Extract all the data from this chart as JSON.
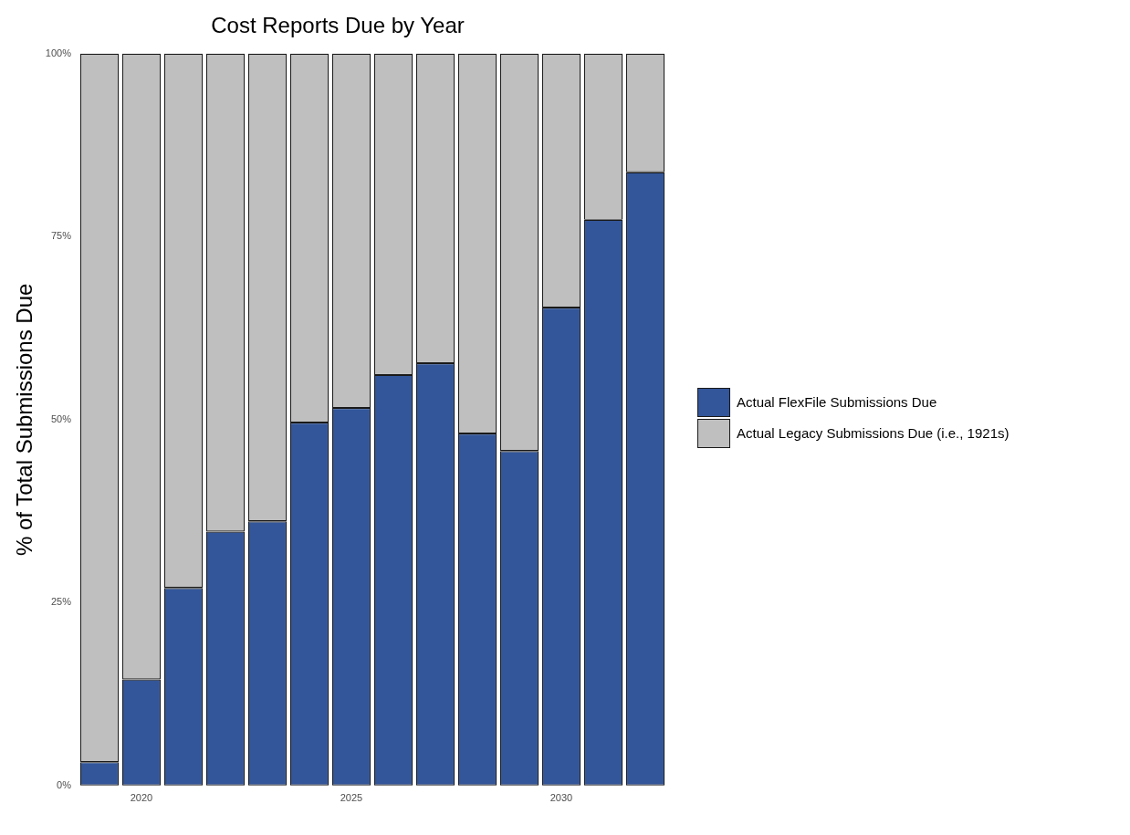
{
  "chart_data": {
    "type": "bar",
    "title": "Cost Reports Due by Year",
    "ylabel": "% of Total Submissions Due",
    "stacked": true,
    "legend": "right",
    "grid": false,
    "x": [
      2019,
      2020,
      2021,
      2022,
      2023,
      2024,
      2025,
      2026,
      2027,
      2028,
      2029,
      2030,
      2031,
      2032
    ],
    "xlim": [
      2018.5,
      2032.5
    ],
    "xticks": [
      2020,
      2025,
      2030
    ],
    "ylim": [
      0,
      100
    ],
    "yticks": [
      {
        "value": 0,
        "label": "0%"
      },
      {
        "value": 25,
        "label": "25%"
      },
      {
        "value": 50,
        "label": "50%"
      },
      {
        "value": 75,
        "label": "75%"
      },
      {
        "value": 100,
        "label": "100%"
      }
    ],
    "series": [
      {
        "name": "Actual FlexFile Submissions Due",
        "color": "#33569a",
        "values": [
          3.2,
          14.5,
          27.0,
          34.7,
          36.1,
          49.6,
          51.6,
          56.1,
          57.7,
          48.1,
          45.7,
          65.3,
          77.3,
          83.8
        ]
      },
      {
        "name": "Actual Legacy Submissions Due (i.e., 1921s)",
        "color": "#bfbfbf",
        "values": [
          96.8,
          85.5,
          73.0,
          65.3,
          63.9,
          50.4,
          48.4,
          43.9,
          42.3,
          51.9,
          54.3,
          34.7,
          22.7,
          16.2
        ]
      }
    ]
  }
}
